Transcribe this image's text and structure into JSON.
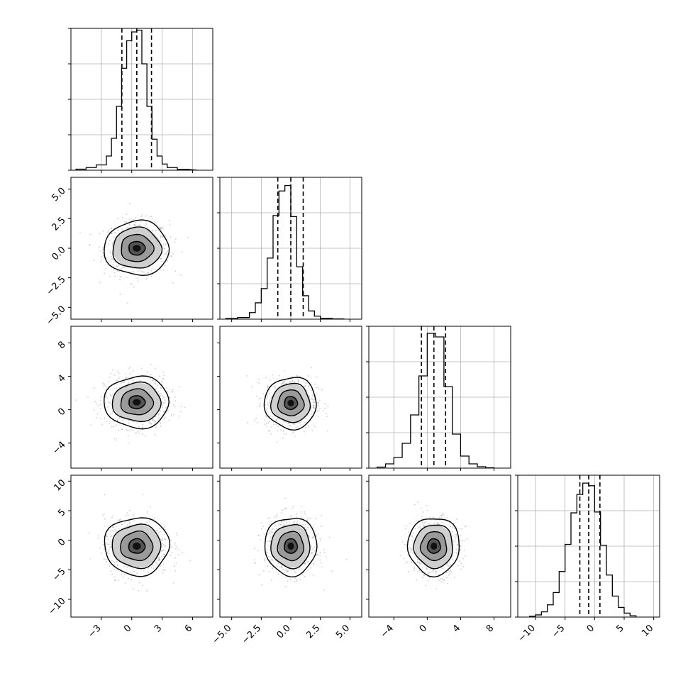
{
  "chart_data": {
    "type": "corner",
    "description_title": "",
    "grid": true,
    "n_params": 4,
    "params": [
      {
        "ticks": [
          -3,
          0,
          3,
          6
        ],
        "tick_labels": [
          "−3",
          "0",
          "3",
          "6"
        ],
        "range": [
          -6,
          8
        ],
        "hist_ylim": [
          0,
          1600
        ],
        "hist_bin_edges": [
          -5.5,
          -4.5,
          -3.5,
          -2.5,
          -2.0,
          -1.5,
          -1.0,
          -0.5,
          0.0,
          0.5,
          1.0,
          1.5,
          2.0,
          2.5,
          3.0,
          3.5,
          4.5,
          5.5,
          6.5
        ],
        "hist_counts": [
          12,
          30,
          60,
          160,
          360,
          720,
          1150,
          1460,
          1560,
          1580,
          1200,
          720,
          350,
          160,
          70,
          30,
          10
        ],
        "quantiles": [
          -0.97,
          0.5,
          1.95
        ]
      },
      {
        "ticks": [
          -5.0,
          -2.5,
          0.0,
          2.5,
          5.0
        ],
        "tick_labels": [
          "−5.0",
          "−2.5",
          "0.0",
          "2.5",
          "5.0"
        ],
        "range": [
          -6,
          6
        ],
        "hist_ylim": [
          0,
          2600
        ],
        "hist_bin_edges": [
          -5.5,
          -4.5,
          -3.5,
          -3.0,
          -2.5,
          -2.0,
          -1.5,
          -1.0,
          -0.5,
          0.0,
          0.5,
          1.0,
          1.5,
          2.0,
          2.5,
          3.5,
          4.5
        ],
        "hist_counts": [
          12,
          30,
          120,
          300,
          560,
          1120,
          1900,
          2350,
          2450,
          1880,
          960,
          430,
          150,
          55,
          15,
          5
        ],
        "quantiles": [
          -1.1,
          0.0,
          1.05
        ]
      },
      {
        "ticks": [
          -4,
          0,
          4,
          8
        ],
        "tick_labels": [
          "−4",
          "0",
          "4",
          "8"
        ],
        "range": [
          -7,
          10
        ],
        "hist_ylim": [
          0,
          2000
        ],
        "hist_bin_edges": [
          -6,
          -5,
          -4,
          -3,
          -2,
          -1,
          0,
          1,
          2,
          3,
          4,
          5,
          6,
          7,
          8
        ],
        "hist_counts": [
          15,
          60,
          150,
          350,
          750,
          1300,
          1900,
          1850,
          1150,
          480,
          170,
          60,
          20,
          5
        ],
        "quantiles": [
          -0.7,
          0.8,
          2.2
        ]
      },
      {
        "ticks": [
          -10,
          -5,
          0,
          5,
          10
        ],
        "tick_labels": [
          "−10",
          "−5",
          "0",
          "5",
          "10"
        ],
        "range": [
          -13,
          11
        ],
        "hist_ylim": [
          0,
          1620
        ],
        "hist_bin_edges": [
          -11,
          -10,
          -9,
          -8,
          -7,
          -6,
          -5,
          -4,
          -3,
          -2,
          -1,
          0,
          1,
          2,
          3,
          4,
          5,
          6,
          7
        ],
        "hist_counts": [
          10,
          25,
          60,
          140,
          280,
          520,
          830,
          1190,
          1400,
          1530,
          1500,
          1200,
          820,
          480,
          240,
          110,
          45,
          15
        ],
        "quantiles": [
          -2.5,
          -1.0,
          0.9
        ]
      }
    ],
    "pairs": [
      {
        "row": 1,
        "col": 0,
        "center": [
          0.5,
          0.0
        ],
        "sd": [
          1.6,
          1.15
        ]
      },
      {
        "row": 2,
        "col": 0,
        "center": [
          0.5,
          0.9
        ],
        "sd": [
          1.6,
          1.55
        ]
      },
      {
        "row": 2,
        "col": 1,
        "center": [
          0.0,
          0.8
        ],
        "sd": [
          1.1,
          1.55
        ]
      },
      {
        "row": 3,
        "col": 0,
        "center": [
          0.5,
          -1.0
        ],
        "sd": [
          1.6,
          2.45
        ]
      },
      {
        "row": 3,
        "col": 1,
        "center": [
          0.0,
          -1.0
        ],
        "sd": [
          1.1,
          2.45
        ]
      },
      {
        "row": 3,
        "col": 2,
        "center": [
          0.8,
          -1.0
        ],
        "sd": [
          1.55,
          2.45
        ]
      }
    ],
    "contour_levels_sigma": [
      0.5,
      1.0,
      1.5,
      2.0
    ]
  }
}
